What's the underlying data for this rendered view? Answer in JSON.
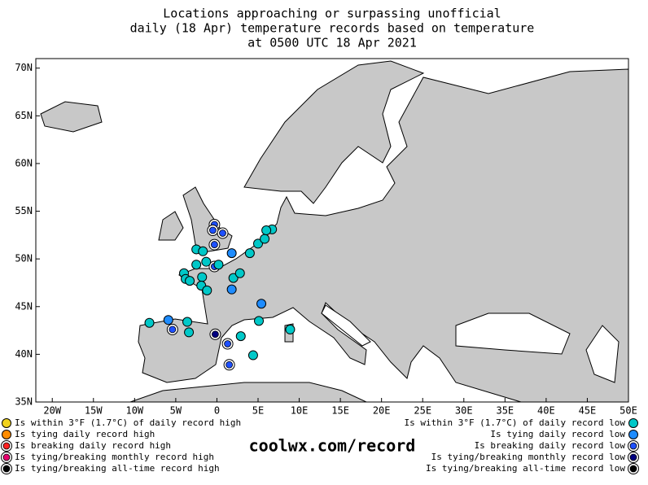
{
  "chart_data": {
    "type": "map-points",
    "title_lines": [
      "Locations approaching or surpassing unofficial",
      "daily (18 Apr) temperature records based on temperature",
      "at 0500 UTC 18 Apr 2021"
    ],
    "xlim": [
      -22,
      50
    ],
    "ylim": [
      35,
      71
    ],
    "xticks": [
      {
        "value": -20,
        "label": "20W"
      },
      {
        "value": -15,
        "label": "15W"
      },
      {
        "value": -10,
        "label": "10W"
      },
      {
        "value": -5,
        "label": "5W"
      },
      0,
      {
        "value": 5,
        "label": "5E"
      },
      {
        "value": 10,
        "label": "10E"
      },
      {
        "value": 15,
        "label": "15E"
      },
      {
        "value": 20,
        "label": "20E"
      },
      {
        "value": 25,
        "label": "25E"
      },
      {
        "value": 30,
        "label": "30E"
      },
      {
        "value": 35,
        "label": "35E"
      },
      {
        "value": 40,
        "label": "40E"
      },
      {
        "value": 45,
        "label": "45E"
      },
      {
        "value": 50,
        "label": "50E"
      }
    ],
    "yticks": [
      {
        "value": 35,
        "label": "35N"
      },
      {
        "value": 40,
        "label": "40N"
      },
      {
        "value": 45,
        "label": "45N"
      },
      {
        "value": 50,
        "label": "50N"
      },
      {
        "value": 55,
        "label": "55N"
      },
      {
        "value": 60,
        "label": "60N"
      },
      {
        "value": 65,
        "label": "65N"
      },
      {
        "value": 70,
        "label": "70N"
      }
    ],
    "styles": {
      "near_low": {
        "fill": "#00c8c8",
        "ring": false
      },
      "tie_low": {
        "fill": "#1e8cff",
        "ring": false
      },
      "break_low": {
        "fill": "#1e50ff",
        "ring": true
      },
      "month_low": {
        "fill": "#000080",
        "ring": true
      }
    },
    "points": [
      {
        "lon": -0.3,
        "lat": 53.6,
        "kind": "break_low"
      },
      {
        "lon": -0.5,
        "lat": 53.0,
        "kind": "break_low"
      },
      {
        "lon": 0.7,
        "lat": 52.7,
        "kind": "break_low"
      },
      {
        "lon": -0.3,
        "lat": 51.5,
        "kind": "break_low"
      },
      {
        "lon": -0.3,
        "lat": 49.2,
        "kind": "break_low"
      },
      {
        "lon": -2.5,
        "lat": 51.0,
        "kind": "near_low"
      },
      {
        "lon": -1.7,
        "lat": 50.8,
        "kind": "near_low"
      },
      {
        "lon": -2.5,
        "lat": 49.4,
        "kind": "near_low"
      },
      {
        "lon": -1.3,
        "lat": 49.7,
        "kind": "near_low"
      },
      {
        "lon": 0.2,
        "lat": 49.4,
        "kind": "near_low"
      },
      {
        "lon": 1.8,
        "lat": 50.6,
        "kind": "tie_low"
      },
      {
        "lon": 4.0,
        "lat": 50.6,
        "kind": "near_low"
      },
      {
        "lon": 5.0,
        "lat": 51.6,
        "kind": "near_low"
      },
      {
        "lon": 5.8,
        "lat": 52.1,
        "kind": "near_low"
      },
      {
        "lon": 6.7,
        "lat": 53.1,
        "kind": "near_low"
      },
      {
        "lon": 6.0,
        "lat": 53.0,
        "kind": "near_low"
      },
      {
        "lon": -4.0,
        "lat": 48.5,
        "kind": "near_low"
      },
      {
        "lon": -3.8,
        "lat": 47.9,
        "kind": "near_low"
      },
      {
        "lon": -3.3,
        "lat": 47.7,
        "kind": "near_low"
      },
      {
        "lon": -1.8,
        "lat": 48.1,
        "kind": "near_low"
      },
      {
        "lon": -1.9,
        "lat": 47.2,
        "kind": "near_low"
      },
      {
        "lon": -1.2,
        "lat": 46.7,
        "kind": "near_low"
      },
      {
        "lon": 2.0,
        "lat": 48.0,
        "kind": "near_low"
      },
      {
        "lon": 2.8,
        "lat": 48.5,
        "kind": "near_low"
      },
      {
        "lon": 1.8,
        "lat": 46.8,
        "kind": "tie_low"
      },
      {
        "lon": 5.4,
        "lat": 45.3,
        "kind": "tie_low"
      },
      {
        "lon": -8.2,
        "lat": 43.3,
        "kind": "near_low"
      },
      {
        "lon": -5.9,
        "lat": 43.6,
        "kind": "tie_low"
      },
      {
        "lon": -3.6,
        "lat": 43.4,
        "kind": "near_low"
      },
      {
        "lon": -5.4,
        "lat": 42.6,
        "kind": "break_low"
      },
      {
        "lon": -3.4,
        "lat": 42.3,
        "kind": "near_low"
      },
      {
        "lon": -0.2,
        "lat": 42.1,
        "kind": "month_low"
      },
      {
        "lon": 1.3,
        "lat": 41.1,
        "kind": "break_low"
      },
      {
        "lon": 2.9,
        "lat": 41.9,
        "kind": "near_low"
      },
      {
        "lon": 5.1,
        "lat": 43.5,
        "kind": "near_low"
      },
      {
        "lon": 4.4,
        "lat": 39.9,
        "kind": "near_low"
      },
      {
        "lon": 1.5,
        "lat": 38.9,
        "kind": "break_low"
      },
      {
        "lon": 8.9,
        "lat": 42.6,
        "kind": "near_low"
      }
    ],
    "legend_left": [
      {
        "label": "Is within 3°F (1.7°C) of daily record high",
        "fill": "#f0d21e",
        "ring": false
      },
      {
        "label": "Is tying daily record high",
        "fill": "#ff8c00",
        "ring": false
      },
      {
        "label": "Is breaking daily record high",
        "fill": "#ff2020",
        "ring": true
      },
      {
        "label": "Is tying/breaking monthly record high",
        "fill": "#e6006e",
        "ring": true
      },
      {
        "label": "Is tying/breaking all-time record high",
        "fill": "#000000",
        "ring": true
      }
    ],
    "legend_right": [
      {
        "label": "Is within 3°F (1.7°C) of daily record low",
        "fill": "#00c8c8",
        "ring": false
      },
      {
        "label": "Is tying daily record low",
        "fill": "#1e8cff",
        "ring": false
      },
      {
        "label": "Is breaking daily record low",
        "fill": "#1e50ff",
        "ring": true
      },
      {
        "label": "Is tying/breaking monthly record low",
        "fill": "#000080",
        "ring": true
      },
      {
        "label": "Is tying/breaking all-time record low",
        "fill": "#000000",
        "ring": true
      }
    ],
    "site": "coolwx.com/record"
  }
}
